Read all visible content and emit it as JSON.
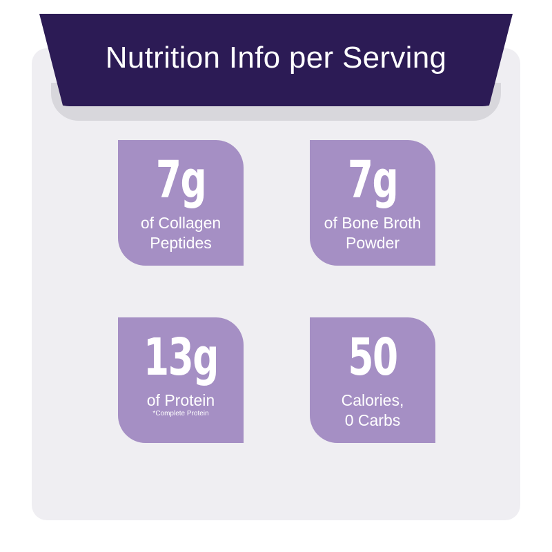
{
  "banner": {
    "title": "Nutrition Info per Serving"
  },
  "colors": {
    "banner": "#2c1b55",
    "tile": "#a58fc4",
    "card": "#efeef2",
    "text": "#ffffff"
  },
  "tiles": [
    {
      "value": "7g",
      "line1": "of Collagen",
      "line2": "Peptides",
      "note": ""
    },
    {
      "value": "7g",
      "line1": "of Bone Broth",
      "line2": "Powder",
      "note": ""
    },
    {
      "value": "13g",
      "line1": "of Protein",
      "line2": "",
      "note": "*Complete Protein"
    },
    {
      "value": "50",
      "line1": "Calories,",
      "line2": "0 Carbs",
      "note": ""
    }
  ]
}
